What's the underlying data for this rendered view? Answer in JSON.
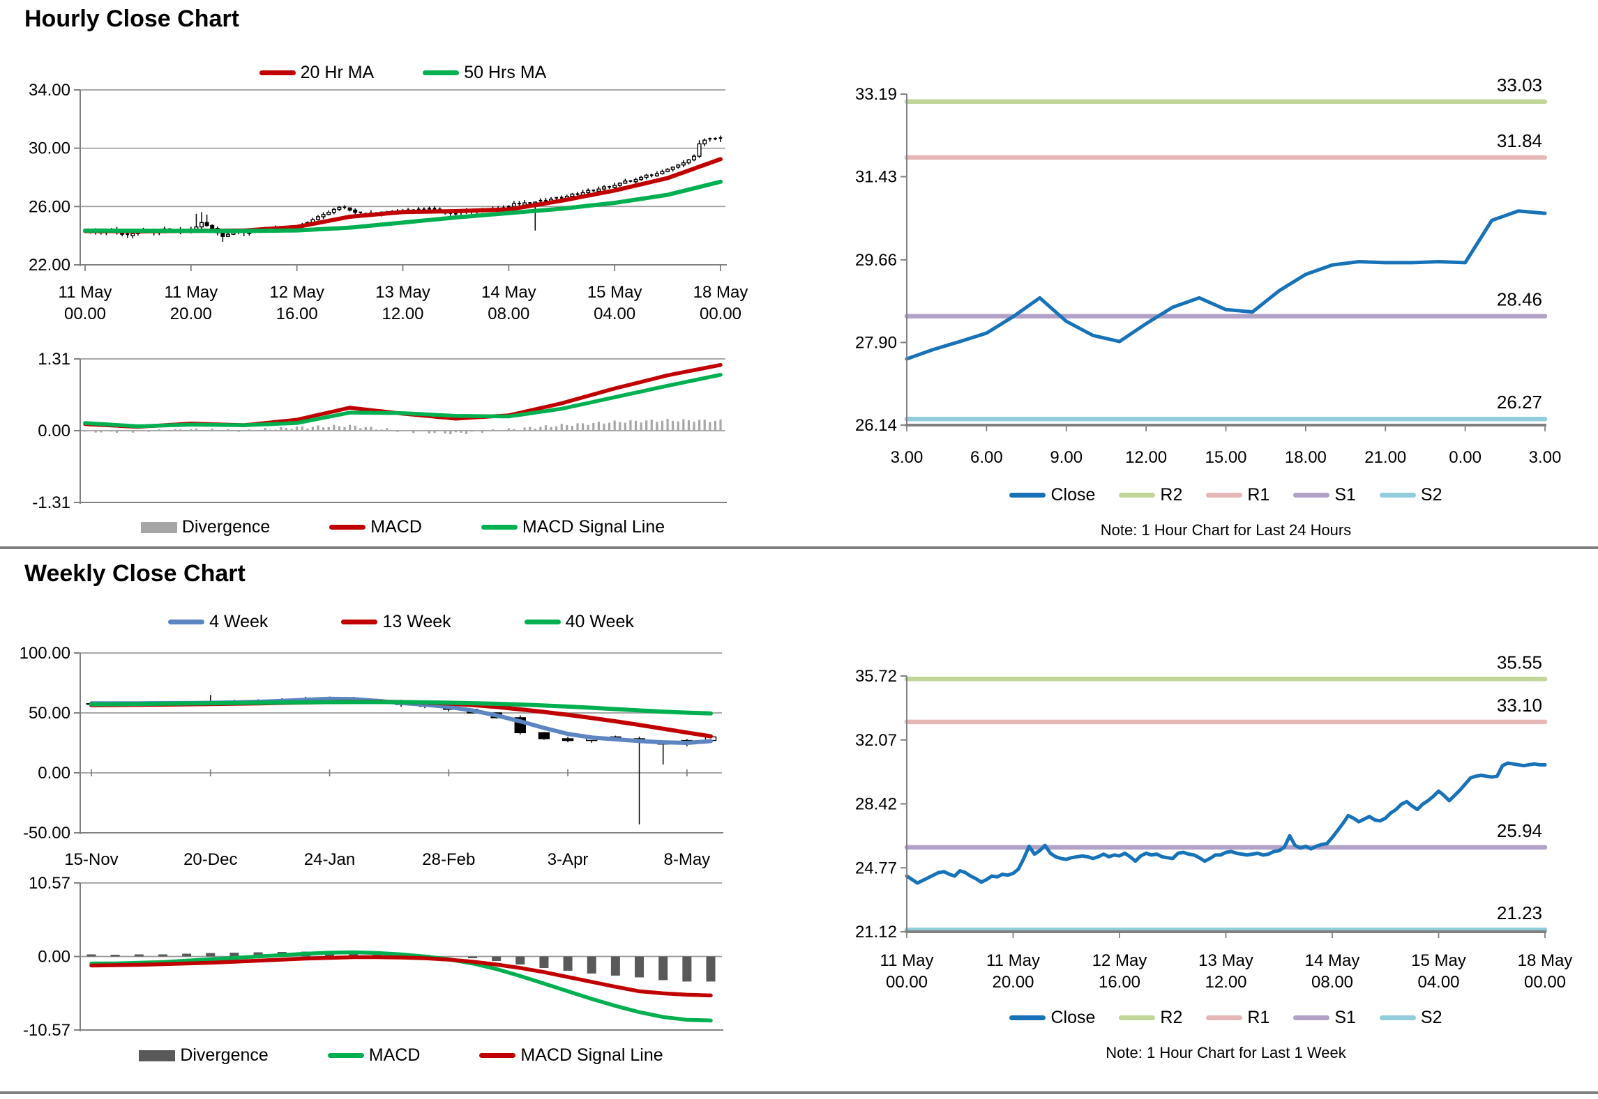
{
  "chart_data": [
    {
      "id": "hourly-price",
      "type": "candlestick",
      "title": "Hourly Close Chart",
      "ylim": [
        22,
        34
      ],
      "y_ticks": [
        {
          "label": "34.00",
          "v": 34
        },
        {
          "label": "30.00",
          "v": 30
        },
        {
          "label": "26.00",
          "v": 26
        },
        {
          "label": "22.00",
          "v": 22
        }
      ],
      "x_ticks": [
        {
          "top": "11 May",
          "bot": "00.00",
          "i": 0
        },
        {
          "top": "11 May",
          "bot": "20.00",
          "i": 20
        },
        {
          "top": "12 May",
          "bot": "16.00",
          "i": 40
        },
        {
          "top": "13 May",
          "bot": "12.00",
          "i": 60
        },
        {
          "top": "14 May",
          "bot": "08.00",
          "i": 80
        },
        {
          "top": "15 May",
          "bot": "04.00",
          "i": 100
        },
        {
          "top": "18 May",
          "bot": "00.00",
          "i": 120
        }
      ],
      "legend": [
        {
          "label": "20 Hr MA",
          "color": "#C00000",
          "type": "line"
        },
        {
          "label": "50 Hrs MA",
          "color": "#00B050",
          "type": "line"
        }
      ],
      "candles": {
        "wick": 0.16,
        "closes": [
          24.3,
          24.25,
          24.35,
          24.2,
          24.3,
          24.4,
          24.25,
          24.1,
          24.0,
          24.15,
          24.3,
          24.4,
          24.3,
          24.2,
          24.35,
          24.45,
          24.35,
          24.25,
          24.4,
          24.3,
          24.45,
          24.6,
          24.9,
          24.7,
          24.5,
          24.2,
          23.95,
          24.1,
          24.3,
          24.25,
          24.15,
          24.3,
          24.4,
          24.35,
          24.45,
          24.4,
          24.5,
          24.45,
          24.55,
          24.5,
          24.6,
          24.75,
          24.9,
          25.1,
          25.3,
          25.45,
          25.6,
          25.8,
          25.95,
          25.9,
          25.75,
          25.6,
          25.5,
          25.4,
          25.55,
          25.5,
          25.6,
          25.55,
          25.65,
          25.6,
          25.7,
          25.75,
          25.7,
          25.8,
          25.75,
          25.85,
          25.8,
          25.7,
          25.55,
          25.45,
          25.5,
          25.6,
          25.7,
          25.65,
          25.75,
          25.7,
          25.8,
          25.85,
          25.8,
          25.9,
          26.0,
          26.2,
          26.1,
          26.25,
          26.15,
          26.3,
          26.4,
          26.35,
          26.5,
          26.6,
          26.55,
          26.7,
          26.85,
          26.8,
          26.95,
          27.1,
          27.05,
          27.2,
          27.35,
          27.3,
          27.45,
          27.6,
          27.75,
          27.7,
          27.85,
          28.0,
          28.15,
          28.1,
          28.25,
          28.4,
          28.55,
          28.7,
          28.85,
          29.0,
          29.2,
          29.45,
          30.3,
          30.55,
          30.65,
          30.6,
          30.7
        ],
        "specials": [
          {
            "i": 21,
            "hi": 25.5
          },
          {
            "i": 22,
            "hi": 25.62
          },
          {
            "i": 23,
            "hi": 25.45
          },
          {
            "i": 26,
            "lo": 23.58
          },
          {
            "i": 85,
            "lo": 24.35
          },
          {
            "i": 116,
            "hi": 30.55
          }
        ]
      },
      "series": [
        {
          "name": "20 Hr MA",
          "color": "#C00000",
          "keys": [
            24.32,
            24.3,
            24.33,
            24.35,
            24.6,
            25.3,
            25.62,
            25.68,
            25.8,
            26.4,
            27.1,
            27.95,
            29.25
          ]
        },
        {
          "name": "50 Hrs MA",
          "color": "#00B050",
          "keys": [
            24.35,
            24.34,
            24.33,
            24.32,
            24.36,
            24.55,
            24.9,
            25.25,
            25.55,
            25.85,
            26.25,
            26.8,
            27.7
          ]
        }
      ]
    },
    {
      "id": "hourly-macd",
      "type": "macd-bar-line",
      "ylim": [
        -1.31,
        1.31
      ],
      "y_ticks": [
        {
          "label": "1.31",
          "v": 1.31
        },
        {
          "label": "0.00",
          "v": 0
        },
        {
          "label": "-1.31",
          "v": -1.31
        }
      ],
      "legend": [
        {
          "label": "Divergence",
          "color": "#A6A6A6",
          "type": "box"
        },
        {
          "label": "MACD",
          "color": "#C00000",
          "type": "line"
        },
        {
          "label": "MACD Signal Line",
          "color": "#00B050",
          "type": "line"
        }
      ],
      "bar_color": "#A6A6A6",
      "series": [
        {
          "name": "MACD",
          "color": "#C00000",
          "keys": [
            0.12,
            0.07,
            0.13,
            0.1,
            0.2,
            0.42,
            0.31,
            0.22,
            0.28,
            0.5,
            0.77,
            1.01,
            1.2
          ]
        },
        {
          "name": "MACD Signal Line",
          "color": "#00B050",
          "keys": [
            0.14,
            0.08,
            0.11,
            0.1,
            0.14,
            0.33,
            0.32,
            0.27,
            0.26,
            0.4,
            0.61,
            0.82,
            1.02
          ]
        }
      ]
    },
    {
      "id": "hourly-pivot",
      "type": "line",
      "note": "Note: 1 Hour Chart for Last 24 Hours",
      "ylim": [
        26.14,
        33.19
      ],
      "y_ticks": [
        {
          "label": "33.19",
          "v": 33.19
        },
        {
          "label": "31.43",
          "v": 31.43
        },
        {
          "label": "29.66",
          "v": 29.66
        },
        {
          "label": "27.90",
          "v": 27.9
        },
        {
          "label": "26.14",
          "v": 26.14
        }
      ],
      "x_ticks": [
        {
          "top": "3.00",
          "i": 0
        },
        {
          "top": "6.00",
          "i": 3
        },
        {
          "top": "9.00",
          "i": 6
        },
        {
          "top": "12.00",
          "i": 9
        },
        {
          "top": "15.00",
          "i": 12
        },
        {
          "top": "18.00",
          "i": 15
        },
        {
          "top": "21.00",
          "i": 18
        },
        {
          "top": "0.00",
          "i": 21
        },
        {
          "top": "3.00",
          "i": 24
        }
      ],
      "levels": [
        {
          "name": "R2",
          "label": "33.03",
          "v": 33.03,
          "color": "#C2D69A"
        },
        {
          "name": "R1",
          "label": "31.84",
          "v": 31.84,
          "color": "#E5B8B7"
        },
        {
          "name": "S1",
          "label": "28.46",
          "v": 28.46,
          "color": "#B2A1C7"
        },
        {
          "name": "S2",
          "label": "26.27",
          "v": 26.27,
          "color": "#92CDDC"
        }
      ],
      "legend": [
        {
          "label": "Close",
          "color": "#1772B8",
          "type": "line"
        },
        {
          "label": "R2",
          "color": "#C2D69A",
          "type": "line"
        },
        {
          "label": "R1",
          "color": "#E5B8B7",
          "type": "line"
        },
        {
          "label": "S1",
          "color": "#B2A1C7",
          "type": "line"
        },
        {
          "label": "S2",
          "color": "#92CDDC",
          "type": "line"
        }
      ],
      "series": [
        {
          "name": "Close",
          "color": "#1772B8",
          "values": [
            27.55,
            27.75,
            27.92,
            28.1,
            28.45,
            28.85,
            28.35,
            28.05,
            27.92,
            28.3,
            28.65,
            28.85,
            28.6,
            28.55,
            29.0,
            29.35,
            29.55,
            29.62,
            29.6,
            29.6,
            29.62,
            29.6,
            30.5,
            30.7,
            30.65
          ]
        }
      ]
    },
    {
      "id": "weekly-price",
      "type": "candlestick",
      "title": "Weekly Close Chart",
      "ylim": [
        -50,
        100
      ],
      "y_ticks": [
        {
          "label": "100.00",
          "v": 100
        },
        {
          "label": "50.00",
          "v": 50
        },
        {
          "label": "0.00",
          "v": 0
        },
        {
          "label": "-50.00",
          "v": -50
        }
      ],
      "x_ticks": [
        {
          "top": "15-Nov",
          "i": 0
        },
        {
          "top": "20-Dec",
          "i": 5
        },
        {
          "top": "24-Jan",
          "i": 10
        },
        {
          "top": "28-Feb",
          "i": 15
        },
        {
          "top": "3-Apr",
          "i": 20
        },
        {
          "top": "8-May",
          "i": 25
        }
      ],
      "legend": [
        {
          "label": "4 Week",
          "color": "#5C85C2",
          "type": "line"
        },
        {
          "label": "13 Week",
          "color": "#C00000",
          "type": "line"
        },
        {
          "label": "40 Week",
          "color": "#00B050",
          "type": "line"
        }
      ],
      "candles": {
        "wick": 1.6,
        "closes": [
          57.5,
          57.0,
          57.8,
          58.3,
          57.6,
          58.5,
          59.0,
          59.5,
          60.5,
          61.5,
          62.0,
          61.0,
          59.0,
          57.0,
          55.5,
          53.0,
          50.0,
          46.0,
          33.5,
          28.5,
          27.0,
          30.0,
          28.5,
          26.0,
          24.0,
          27.0,
          30.0
        ],
        "specials": [
          {
            "i": 5,
            "hi": 65
          },
          {
            "i": 23,
            "lo": -43
          },
          {
            "i": 24,
            "lo": 7
          }
        ]
      },
      "series": [
        {
          "name": "4 Week",
          "color": "#5C85C2",
          "values": [
            58.0,
            58.0,
            58.0,
            58.2,
            58.2,
            58.4,
            58.8,
            59.3,
            60.0,
            61.0,
            61.8,
            61.5,
            60.0,
            58.3,
            56.8,
            55.0,
            52.0,
            48.0,
            43.0,
            37.5,
            32.5,
            29.5,
            28.0,
            26.5,
            25.5,
            25.0,
            26.5
          ]
        },
        {
          "name": "13 Week",
          "color": "#C00000",
          "values": [
            56.5,
            56.6,
            56.8,
            57.0,
            57.2,
            57.4,
            57.7,
            58.0,
            58.4,
            58.8,
            59.1,
            59.3,
            59.3,
            59.1,
            58.6,
            57.8,
            56.6,
            55.0,
            53.0,
            50.8,
            48.4,
            45.8,
            43.0,
            40.0,
            36.8,
            33.6,
            30.5
          ]
        },
        {
          "name": "40 Week",
          "color": "#00B050",
          "values": [
            57.2,
            57.3,
            57.5,
            57.7,
            57.9,
            58.1,
            58.3,
            58.5,
            58.7,
            58.9,
            59.0,
            59.1,
            59.1,
            59.0,
            58.8,
            58.5,
            58.1,
            57.6,
            57.0,
            56.2,
            55.3,
            54.3,
            53.2,
            52.1,
            51.0,
            50.2,
            49.6
          ]
        }
      ]
    },
    {
      "id": "weekly-macd",
      "type": "macd-bar-line",
      "ylim": [
        -10.57,
        10.57
      ],
      "y_ticks": [
        {
          "label": "10.57",
          "v": 10.57
        },
        {
          "label": "0.00",
          "v": 0
        },
        {
          "label": "-10.57",
          "v": -10.57
        }
      ],
      "legend": [
        {
          "label": "Divergence",
          "color": "#595959",
          "type": "box"
        },
        {
          "label": "MACD",
          "color": "#00B050",
          "type": "line"
        },
        {
          "label": "MACD Signal Line",
          "color": "#C00000",
          "type": "line"
        }
      ],
      "bar_color": "#595959",
      "series": [
        {
          "name": "MACD",
          "color": "#00B050",
          "values": [
            -1.0,
            -1.0,
            -0.9,
            -0.8,
            -0.6,
            -0.4,
            -0.2,
            0.0,
            0.2,
            0.4,
            0.55,
            0.6,
            0.5,
            0.3,
            0.0,
            -0.4,
            -1.0,
            -1.8,
            -2.8,
            -3.9,
            -5.0,
            -6.1,
            -7.1,
            -8.0,
            -8.7,
            -9.1,
            -9.2
          ]
        },
        {
          "name": "MACD Signal Line",
          "color": "#C00000",
          "values": [
            -1.3,
            -1.25,
            -1.2,
            -1.1,
            -1.0,
            -0.9,
            -0.75,
            -0.6,
            -0.45,
            -0.3,
            -0.2,
            -0.1,
            -0.1,
            -0.15,
            -0.25,
            -0.45,
            -0.75,
            -1.15,
            -1.65,
            -2.25,
            -2.95,
            -3.65,
            -4.35,
            -5.0,
            -5.3,
            -5.5,
            -5.6
          ]
        }
      ]
    },
    {
      "id": "weekly-pivot",
      "type": "line",
      "note": "Note: 1 Hour Chart for Last 1 Week",
      "ylim": [
        21.12,
        35.72
      ],
      "y_ticks": [
        {
          "label": "35.72",
          "v": 35.72
        },
        {
          "label": "32.07",
          "v": 32.07
        },
        {
          "label": "28.42",
          "v": 28.42
        },
        {
          "label": "24.77",
          "v": 24.77
        },
        {
          "label": "21.12",
          "v": 21.12
        }
      ],
      "x_ticks": [
        {
          "top": "11 May",
          "bot": "00.00",
          "i": 0
        },
        {
          "top": "11 May",
          "bot": "20.00",
          "i": 20
        },
        {
          "top": "12 May",
          "bot": "16.00",
          "i": 40
        },
        {
          "top": "13 May",
          "bot": "12.00",
          "i": 60
        },
        {
          "top": "14 May",
          "bot": "08.00",
          "i": 80
        },
        {
          "top": "15 May",
          "bot": "04.00",
          "i": 100
        },
        {
          "top": "18 May",
          "bot": "00.00",
          "i": 120
        }
      ],
      "levels": [
        {
          "name": "R2",
          "label": "35.55",
          "v": 35.55,
          "color": "#C2D69A"
        },
        {
          "name": "R1",
          "label": "33.10",
          "v": 33.1,
          "color": "#E5B8B7"
        },
        {
          "name": "S1",
          "label": "25.94",
          "v": 25.94,
          "color": "#B2A1C7"
        },
        {
          "name": "S2",
          "label": "21.23",
          "v": 21.23,
          "color": "#92CDDC"
        }
      ],
      "legend": [
        {
          "label": "Close",
          "color": "#1772B8",
          "type": "line"
        },
        {
          "label": "R2",
          "color": "#C2D69A",
          "type": "line"
        },
        {
          "label": "R1",
          "color": "#E5B8B7",
          "type": "line"
        },
        {
          "label": "S1",
          "color": "#B2A1C7",
          "type": "line"
        },
        {
          "label": "S2",
          "color": "#92CDDC",
          "type": "line"
        }
      ],
      "series": [
        {
          "name": "Close",
          "color": "#1772B8",
          "values": [
            24.3,
            24.1,
            23.9,
            24.05,
            24.2,
            24.35,
            24.5,
            24.55,
            24.4,
            24.3,
            24.6,
            24.5,
            24.3,
            24.15,
            23.95,
            24.1,
            24.3,
            24.25,
            24.4,
            24.35,
            24.45,
            24.7,
            25.3,
            26.0,
            25.55,
            25.75,
            26.05,
            25.6,
            25.4,
            25.3,
            25.25,
            25.35,
            25.4,
            25.45,
            25.4,
            25.3,
            25.4,
            25.55,
            25.4,
            25.5,
            25.45,
            25.6,
            25.4,
            25.15,
            25.45,
            25.6,
            25.5,
            25.55,
            25.4,
            25.35,
            25.3,
            25.6,
            25.65,
            25.55,
            25.5,
            25.35,
            25.15,
            25.3,
            25.5,
            25.5,
            25.65,
            25.7,
            25.6,
            25.55,
            25.5,
            25.55,
            25.6,
            25.5,
            25.55,
            25.7,
            25.75,
            25.95,
            26.6,
            26.05,
            25.9,
            26.0,
            25.85,
            26.0,
            26.1,
            26.15,
            26.5,
            26.9,
            27.3,
            27.75,
            27.6,
            27.4,
            27.55,
            27.7,
            27.5,
            27.45,
            27.6,
            27.9,
            28.1,
            28.4,
            28.55,
            28.3,
            28.1,
            28.4,
            28.6,
            28.85,
            29.15,
            28.9,
            28.6,
            28.9,
            29.2,
            29.55,
            29.9,
            30.0,
            30.05,
            30.0,
            29.95,
            30.0,
            30.6,
            30.75,
            30.7,
            30.65,
            30.6,
            30.65,
            30.7,
            30.65,
            30.65
          ]
        }
      ]
    }
  ]
}
